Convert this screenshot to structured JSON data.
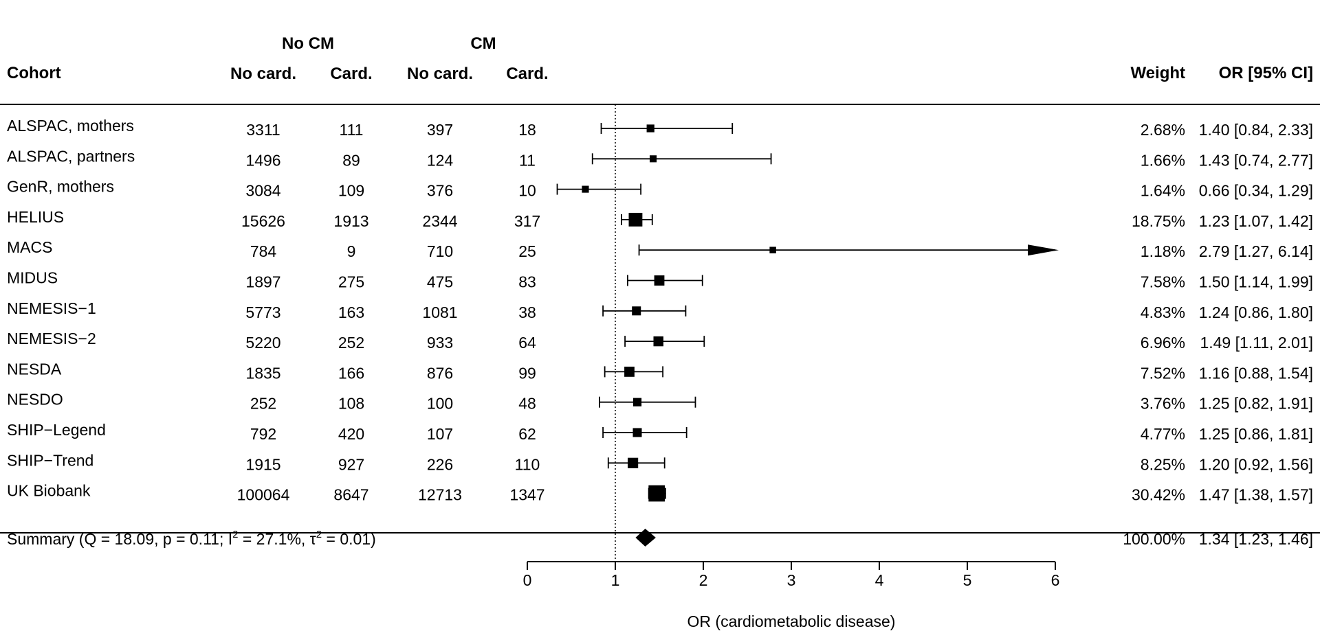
{
  "header": {
    "group_no_cm": "No CM",
    "group_cm": "CM",
    "col_cohort": "Cohort",
    "col_no_card_1": "No card.",
    "col_card_1": "Card.",
    "col_no_card_2": "No card.",
    "col_card_2": "Card.",
    "col_weight": "Weight",
    "col_or": "OR [95% CI]"
  },
  "rows": [
    {
      "cohort": "ALSPAC, mothers",
      "nocm_nocard": "3311",
      "nocm_card": "111",
      "cm_nocard": "397",
      "cm_card": "18",
      "weight": "2.68%",
      "or_text": "1.40 [0.84, 2.33]"
    },
    {
      "cohort": "ALSPAC, partners",
      "nocm_nocard": "1496",
      "nocm_card": "89",
      "cm_nocard": "124",
      "cm_card": "11",
      "weight": "1.66%",
      "or_text": "1.43 [0.74, 2.77]"
    },
    {
      "cohort": "GenR, mothers",
      "nocm_nocard": "3084",
      "nocm_card": "109",
      "cm_nocard": "376",
      "cm_card": "10",
      "weight": "1.64%",
      "or_text": "0.66 [0.34, 1.29]"
    },
    {
      "cohort": "HELIUS",
      "nocm_nocard": "15626",
      "nocm_card": "1913",
      "cm_nocard": "2344",
      "cm_card": "317",
      "weight": "18.75%",
      "or_text": "1.23 [1.07, 1.42]"
    },
    {
      "cohort": "MACS",
      "nocm_nocard": "784",
      "nocm_card": "9",
      "cm_nocard": "710",
      "cm_card": "25",
      "weight": "1.18%",
      "or_text": "2.79 [1.27, 6.14]"
    },
    {
      "cohort": "MIDUS",
      "nocm_nocard": "1897",
      "nocm_card": "275",
      "cm_nocard": "475",
      "cm_card": "83",
      "weight": "7.58%",
      "or_text": "1.50 [1.14, 1.99]"
    },
    {
      "cohort": "NEMESIS−1",
      "nocm_nocard": "5773",
      "nocm_card": "163",
      "cm_nocard": "1081",
      "cm_card": "38",
      "weight": "4.83%",
      "or_text": "1.24 [0.86, 1.80]"
    },
    {
      "cohort": "NEMESIS−2",
      "nocm_nocard": "5220",
      "nocm_card": "252",
      "cm_nocard": "933",
      "cm_card": "64",
      "weight": "6.96%",
      "or_text": "1.49 [1.11, 2.01]"
    },
    {
      "cohort": "NESDA",
      "nocm_nocard": "1835",
      "nocm_card": "166",
      "cm_nocard": "876",
      "cm_card": "99",
      "weight": "7.52%",
      "or_text": "1.16 [0.88, 1.54]"
    },
    {
      "cohort": "NESDO",
      "nocm_nocard": "252",
      "nocm_card": "108",
      "cm_nocard": "100",
      "cm_card": "48",
      "weight": "3.76%",
      "or_text": "1.25 [0.82, 1.91]"
    },
    {
      "cohort": "SHIP−Legend",
      "nocm_nocard": "792",
      "nocm_card": "420",
      "cm_nocard": "107",
      "cm_card": "62",
      "weight": "4.77%",
      "or_text": "1.25 [0.86, 1.81]"
    },
    {
      "cohort": "SHIP−Trend",
      "nocm_nocard": "1915",
      "nocm_card": "927",
      "cm_nocard": "226",
      "cm_card": "110",
      "weight": "8.25%",
      "or_text": "1.20 [0.92, 1.56]"
    },
    {
      "cohort": "UK Biobank",
      "nocm_nocard": "100064",
      "nocm_card": "8647",
      "cm_nocard": "12713",
      "cm_card": "1347",
      "weight": "30.42%",
      "or_text": "1.47 [1.38, 1.57]"
    }
  ],
  "summary": {
    "label_prefix": "Summary (Q = 18.09, p = 0.11; I",
    "label_sup1": "2",
    "label_middle": " = 27.1%, τ",
    "label_sup2": "2",
    "label_suffix": " = 0.01)",
    "weight": "100.00%",
    "or_text": "1.34 [1.23, 1.46]"
  },
  "chart_data": {
    "type": "forest",
    "xlabel": "OR (cardiometabolic disease)",
    "xlim": [
      0,
      6
    ],
    "xticks": [
      0,
      1,
      2,
      3,
      4,
      5,
      6
    ],
    "reference_line": 1,
    "series": [
      {
        "cohort": "ALSPAC, mothers",
        "or": 1.4,
        "lower": 0.84,
        "upper": 2.33,
        "weight": 2.68
      },
      {
        "cohort": "ALSPAC, partners",
        "or": 1.43,
        "lower": 0.74,
        "upper": 2.77,
        "weight": 1.66
      },
      {
        "cohort": "GenR, mothers",
        "or": 0.66,
        "lower": 0.34,
        "upper": 1.29,
        "weight": 1.64
      },
      {
        "cohort": "HELIUS",
        "or": 1.23,
        "lower": 1.07,
        "upper": 1.42,
        "weight": 18.75
      },
      {
        "cohort": "MACS",
        "or": 2.79,
        "lower": 1.27,
        "upper": 6.14,
        "weight": 1.18
      },
      {
        "cohort": "MIDUS",
        "or": 1.5,
        "lower": 1.14,
        "upper": 1.99,
        "weight": 7.58
      },
      {
        "cohort": "NEMESIS−1",
        "or": 1.24,
        "lower": 0.86,
        "upper": 1.8,
        "weight": 4.83
      },
      {
        "cohort": "NEMESIS−2",
        "or": 1.49,
        "lower": 1.11,
        "upper": 2.01,
        "weight": 6.96
      },
      {
        "cohort": "NESDA",
        "or": 1.16,
        "lower": 0.88,
        "upper": 1.54,
        "weight": 7.52
      },
      {
        "cohort": "NESDO",
        "or": 1.25,
        "lower": 0.82,
        "upper": 1.91,
        "weight": 3.76
      },
      {
        "cohort": "SHIP−Legend",
        "or": 1.25,
        "lower": 0.86,
        "upper": 1.81,
        "weight": 4.77
      },
      {
        "cohort": "SHIP−Trend",
        "or": 1.2,
        "lower": 0.92,
        "upper": 1.56,
        "weight": 8.25
      },
      {
        "cohort": "UK Biobank",
        "or": 1.47,
        "lower": 1.38,
        "upper": 1.57,
        "weight": 30.42
      }
    ],
    "summary": {
      "or": 1.34,
      "lower": 1.23,
      "upper": 1.46,
      "weight": 100.0
    }
  }
}
